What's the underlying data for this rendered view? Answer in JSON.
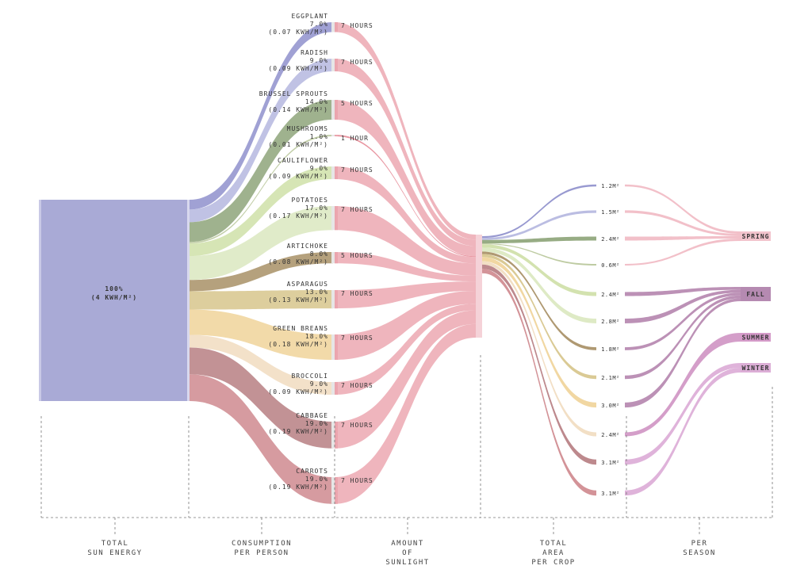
{
  "total": {
    "percent": "100%",
    "kwh": "(4 KWH/M²)"
  },
  "crops": [
    {
      "name": "EGGPLANT",
      "percent": "7.0%",
      "kwh": "(0.07 KWH/M²)",
      "hours": "7 HOURS",
      "area": "1.2M²",
      "season": "spring",
      "color": "#8f90cc"
    },
    {
      "name": "RADISH",
      "percent": "9.0%",
      "kwh": "(0.09 KWH/M²)",
      "hours": "7 HOURS",
      "area": "1.5M²",
      "season": "spring",
      "color": "#b5b7df"
    },
    {
      "name": "BRUSSEL SPROUTS",
      "percent": "14.0%",
      "kwh": "(0.14 KWH/M²)",
      "hours": "5 HOURS",
      "area": "2.4M²",
      "season": "spring",
      "color": "#8ea57a"
    },
    {
      "name": "MUSHROOMS",
      "percent": "1.0%",
      "kwh": "(0.01 KWH/M²)",
      "hours": "1 HOUR",
      "area": "0.6M²",
      "season": "spring",
      "color": "#b8c79a"
    },
    {
      "name": "CAULIFLOWER",
      "percent": "9.0%",
      "kwh": "(0.09 KWH/M²)",
      "hours": "7 HOURS",
      "area": "2.4M²",
      "season": "fall",
      "color": "#cfe0a8"
    },
    {
      "name": "POTATOES",
      "percent": "17.0%",
      "kwh": "(0.17 KWH/M²)",
      "hours": "7 HOURS",
      "area": "2.8M²",
      "season": "fall",
      "color": "#dbe8c0"
    },
    {
      "name": "ARTICHOKE",
      "percent": "8.0%",
      "kwh": "(0.08 KWH/M²)",
      "hours": "5 HOURS",
      "area": "1.8M²",
      "season": "fall",
      "color": "#a89066"
    },
    {
      "name": "ASPARAGUS",
      "percent": "13.0%",
      "kwh": "(0.13 KWH/M²)",
      "hours": "7 HOURS",
      "area": "2.1M²",
      "season": "fall",
      "color": "#d7c58c"
    },
    {
      "name": "GREEN BREANS",
      "percent": "18.0%",
      "kwh": "(0.18 KWH/M²)",
      "hours": "7 HOURS",
      "area": "3.0M²",
      "season": "fall",
      "color": "#f0d49a"
    },
    {
      "name": "BROCCOLI",
      "percent": "9.0%",
      "kwh": "(0.09 KWH/M²)",
      "hours": "7 HOURS",
      "area": "2.4M²",
      "season": "summer",
      "color": "#f1dcc0"
    },
    {
      "name": "CABBAGE",
      "percent": "19.0%",
      "kwh": "(0.19 KWH/M²)",
      "hours": "7 HOURS",
      "area": "3.1M²",
      "season": "winter",
      "color": "#b77f83"
    },
    {
      "name": "CARROTS",
      "percent": "19.0%",
      "kwh": "(0.19 KWH/M²)",
      "hours": "7 HOURS",
      "area": "3.1M²",
      "season": "winter",
      "color": "#cf8a8f"
    }
  ],
  "seasons": {
    "spring": "SPRING",
    "fall": "FALL",
    "summer": "SUMMER",
    "winter": "WINTER"
  },
  "axis": [
    {
      "l1": "TOTAL",
      "l2": "SUN ENERGY",
      "l3": ""
    },
    {
      "l1": "CONSUMPTION",
      "l2": "PER PERSON",
      "l3": ""
    },
    {
      "l1": "AMOUNT",
      "l2": "OF",
      "l3": "SUNLIGHT"
    },
    {
      "l1": "TOTAL",
      "l2": "AREA",
      "l3": "PER CROP"
    },
    {
      "l1": "PER",
      "l2": "SEASON",
      "l3": ""
    }
  ],
  "colors": {
    "sun": "#a9aad6",
    "hours": "#eba5ae",
    "hoursDark": "#e37f8c",
    "seasonBox": "#f2c4cd"
  }
}
